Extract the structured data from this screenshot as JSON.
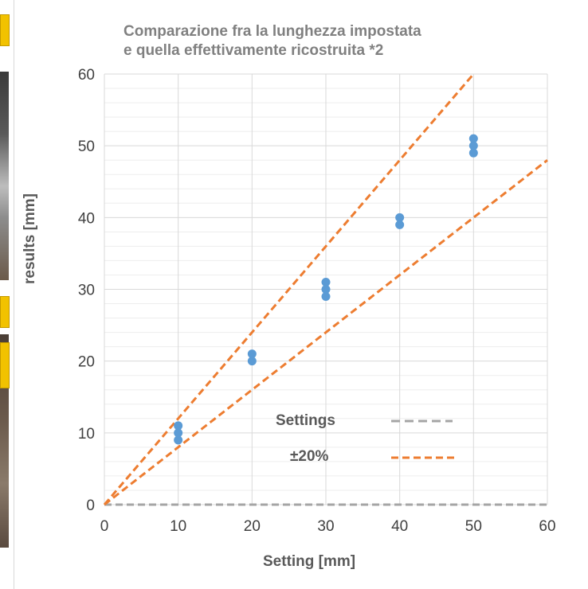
{
  "chart_data": {
    "type": "scatter",
    "title_lines": [
      "Comparazione fra la lunghezza impostata",
      "e quella effettivamente ricostruita *2"
    ],
    "xlabel": "Setting [mm]",
    "ylabel": "results [mm]",
    "xlim": [
      0,
      60
    ],
    "ylim": [
      0,
      60
    ],
    "xticks": [
      0,
      10,
      20,
      30,
      40,
      50,
      60
    ],
    "yticks": [
      0,
      10,
      20,
      30,
      40,
      50,
      60
    ],
    "grid": true,
    "legend_position": "bottom-right",
    "series": [
      {
        "type": "scatter",
        "color": "#5b9bd5",
        "points": [
          [
            10,
            9
          ],
          [
            10,
            10
          ],
          [
            10,
            11
          ],
          [
            20,
            20
          ],
          [
            20,
            21
          ],
          [
            30,
            29
          ],
          [
            30,
            30
          ],
          [
            30,
            31
          ],
          [
            40,
            39
          ],
          [
            40,
            40
          ],
          [
            50,
            49
          ],
          [
            50,
            50
          ],
          [
            50,
            51
          ]
        ]
      },
      {
        "name": "Settings",
        "type": "line",
        "dashed": true,
        "color": "#a5a5a5",
        "points": [
          [
            0,
            0
          ],
          [
            60,
            0
          ]
        ]
      },
      {
        "name": "±20%",
        "type": "line",
        "dashed": true,
        "color": "#ed7d31",
        "points": [
          [
            0,
            0
          ],
          [
            50,
            60
          ]
        ]
      },
      {
        "type": "line",
        "dashed": true,
        "color": "#ed7d31",
        "points": [
          [
            0,
            0
          ],
          [
            60,
            48
          ]
        ]
      }
    ]
  }
}
